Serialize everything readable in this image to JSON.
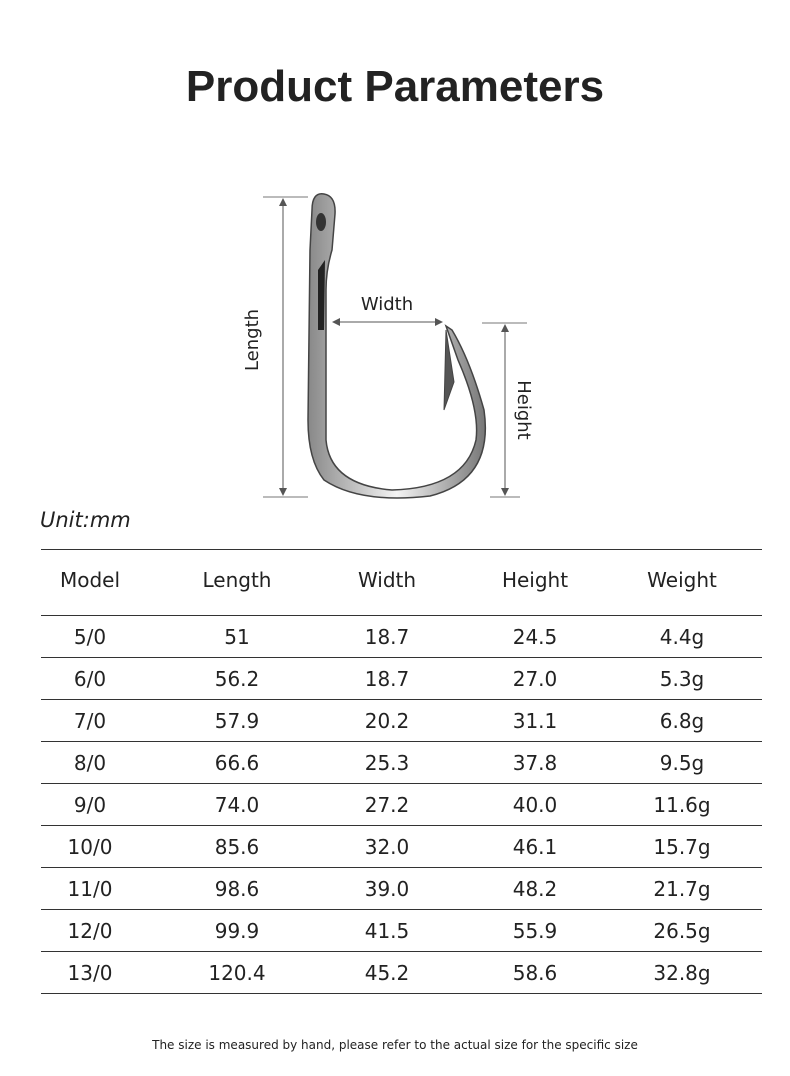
{
  "header": {
    "title": "Product Parameters"
  },
  "diagram": {
    "length_label": "Length",
    "width_label": "Width",
    "height_label": "Height"
  },
  "unit": "Unit:mm",
  "table": {
    "columns": [
      "Model",
      "Length",
      "Width",
      "Height",
      "Weight"
    ],
    "rows": [
      [
        "5/0",
        "51",
        "18.7",
        "24.5",
        "4.4g"
      ],
      [
        "6/0",
        "56.2",
        "18.7",
        "27.0",
        "5.3g"
      ],
      [
        "7/0",
        "57.9",
        "20.2",
        "31.1",
        "6.8g"
      ],
      [
        "8/0",
        "66.6",
        "25.3",
        "37.8",
        "9.5g"
      ],
      [
        "9/0",
        "74.0",
        "27.2",
        "40.0",
        "11.6g"
      ],
      [
        "10/0",
        "85.6",
        "32.0",
        "46.1",
        "15.7g"
      ],
      [
        "11/0",
        "98.6",
        "39.0",
        "48.2",
        "21.7g"
      ],
      [
        "12/0",
        "99.9",
        "41.5",
        "55.9",
        "26.5g"
      ],
      [
        "13/0",
        "120.4",
        "45.2",
        "58.6",
        "32.8g"
      ]
    ]
  },
  "footnote": "The size is measured by hand, please refer to the actual size for the specific size"
}
